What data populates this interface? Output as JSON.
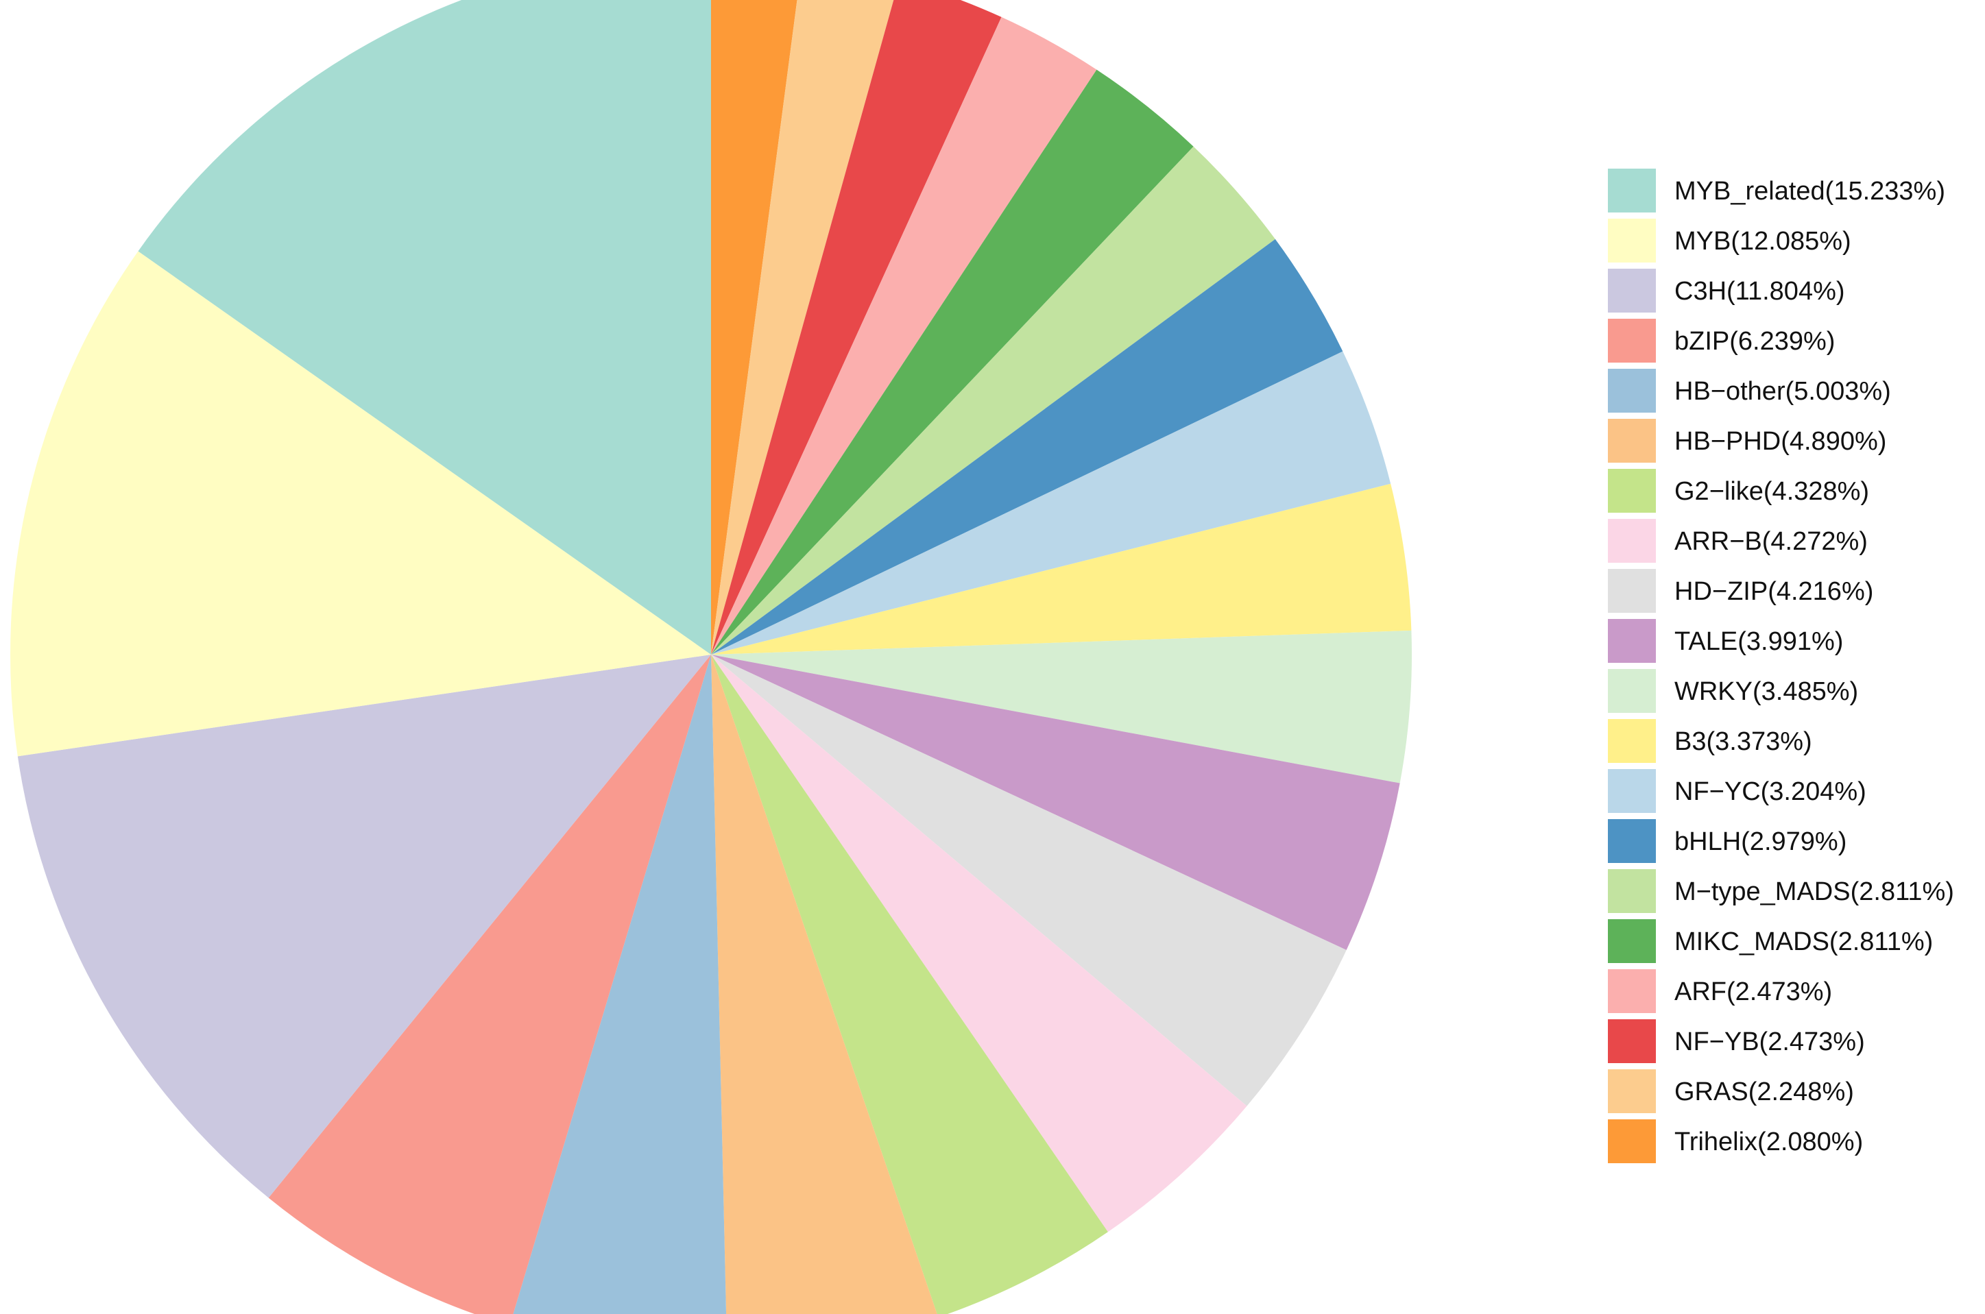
{
  "chart_data": {
    "type": "pie",
    "title": "",
    "start": "12 o'clock",
    "direction": "counterclockwise",
    "legend_position": "right",
    "slices": [
      {
        "label": "MYB_related",
        "value": 15.233,
        "legend": "MYB_related(15.233%)",
        "color": "#A6DCD2"
      },
      {
        "label": "MYB",
        "value": 12.085,
        "legend": "MYB(12.085%)",
        "color": "#FFFDC2"
      },
      {
        "label": "C3H",
        "value": 11.804,
        "legend": "C3H(11.804%)",
        "color": "#CBC8E0"
      },
      {
        "label": "bZIP",
        "value": 6.239,
        "legend": "bZIP(6.239%)",
        "color": "#F99A8F"
      },
      {
        "label": "HB-other",
        "value": 5.003,
        "legend": "HB−other(5.003%)",
        "color": "#9BC1DB"
      },
      {
        "label": "HB-PHD",
        "value": 4.89,
        "legend": "HB−PHD(4.890%)",
        "color": "#FBC386"
      },
      {
        "label": "G2-like",
        "value": 4.328,
        "legend": "G2−like(4.328%)",
        "color": "#C4E48A"
      },
      {
        "label": "ARR-B",
        "value": 4.272,
        "legend": "ARR−B(4.272%)",
        "color": "#FBD6E6"
      },
      {
        "label": "HD-ZIP",
        "value": 4.216,
        "legend": "HD−ZIP(4.216%)",
        "color": "#E0E0E0"
      },
      {
        "label": "TALE",
        "value": 3.991,
        "legend": "TALE(3.991%)",
        "color": "#C99AC9"
      },
      {
        "label": "WRKY",
        "value": 3.485,
        "legend": "WRKY(3.485%)",
        "color": "#D6EED2"
      },
      {
        "label": "B3",
        "value": 3.373,
        "legend": "B3(3.373%)",
        "color": "#FFF08A"
      },
      {
        "label": "NF-YC",
        "value": 3.204,
        "legend": "NF−YC(3.204%)",
        "color": "#BAD7E9"
      },
      {
        "label": "bHLH",
        "value": 2.979,
        "legend": "bHLH(2.979%)",
        "color": "#4D93C4"
      },
      {
        "label": "M-type_MADS",
        "value": 2.811,
        "legend": "M−type_MADS(2.811%)",
        "color": "#C2E3A0"
      },
      {
        "label": "MIKC_MADS",
        "value": 2.811,
        "legend": "MIKC_MADS(2.811%)",
        "color": "#5DB259"
      },
      {
        "label": "ARF",
        "value": 2.473,
        "legend": "ARF(2.473%)",
        "color": "#FBAFAE"
      },
      {
        "label": "NF-YB",
        "value": 2.473,
        "legend": "NF−YB(2.473%)",
        "color": "#E8484A"
      },
      {
        "label": "GRAS",
        "value": 2.248,
        "legend": "GRAS(2.248%)",
        "color": "#FCCC8E"
      },
      {
        "label": "Trihelix",
        "value": 2.08,
        "legend": "Trihelix(2.080%)",
        "color": "#FD9A37"
      }
    ]
  }
}
